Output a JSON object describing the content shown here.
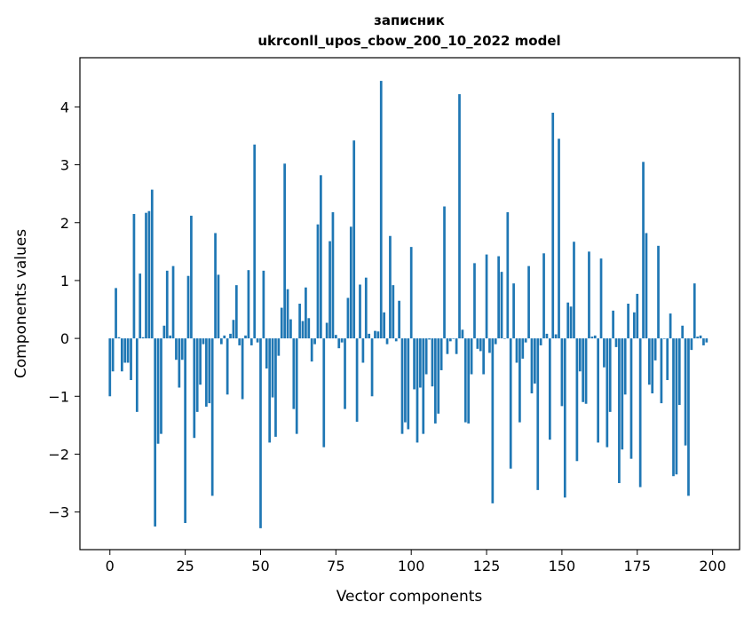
{
  "chart_data": {
    "type": "bar",
    "title": "записник",
    "subtitle": "ukrconll_upos_cbow_200_10_2022 model",
    "xlabel": "Vector components",
    "ylabel": "Components values",
    "xlim": [
      -9.95,
      208.95
    ],
    "ylim": [
      -3.65,
      4.85
    ],
    "xticks": [
      0,
      25,
      50,
      75,
      100,
      125,
      150,
      175,
      200
    ],
    "yticks": [
      -3,
      -2,
      -1,
      0,
      1,
      2,
      3,
      4
    ],
    "color": "#1f77b4",
    "grid": false,
    "values": [
      -1.0,
      -0.57,
      0.87,
      0.02,
      -0.57,
      -0.42,
      -0.42,
      -0.72,
      2.15,
      -1.27,
      1.12,
      0.02,
      2.17,
      2.2,
      2.57,
      -3.25,
      -1.82,
      -1.65,
      0.22,
      1.17,
      0.05,
      1.25,
      -0.37,
      -0.85,
      -0.37,
      -3.19,
      1.08,
      2.12,
      -1.72,
      -1.27,
      -0.8,
      -0.1,
      -1.18,
      -1.12,
      -2.72,
      1.82,
      1.1,
      -0.1,
      0.05,
      -0.97,
      0.08,
      0.32,
      0.92,
      -0.12,
      -1.05,
      0.05,
      1.18,
      -0.12,
      3.35,
      -0.07,
      -3.28,
      1.17,
      -0.52,
      -1.8,
      -1.02,
      -1.7,
      -0.3,
      0.53,
      3.02,
      0.85,
      0.33,
      -1.22,
      -1.65,
      0.6,
      0.3,
      0.88,
      0.35,
      -0.4,
      -0.1,
      1.97,
      2.82,
      -1.88,
      0.27,
      1.68,
      2.18,
      0.06,
      -0.17,
      -0.07,
      -1.22,
      0.7,
      1.93,
      3.42,
      -1.44,
      0.93,
      -0.42,
      1.05,
      0.08,
      -1.0,
      0.13,
      0.12,
      4.45,
      0.45,
      -0.1,
      1.77,
      0.92,
      -0.05,
      0.65,
      -1.65,
      -1.45,
      -1.57,
      1.58,
      -0.88,
      -1.8,
      -0.85,
      -1.65,
      -0.62,
      -0.02,
      -0.83,
      -1.47,
      -1.3,
      -0.55,
      2.28,
      -0.27,
      -0.05,
      0.0,
      -0.27,
      4.22,
      0.15,
      -1.45,
      -1.47,
      -0.62,
      1.3,
      -0.18,
      -0.22,
      -0.62,
      1.45,
      -0.25,
      -2.85,
      -0.1,
      1.42,
      1.15,
      0.0,
      2.18,
      -2.25,
      0.95,
      -0.42,
      -1.45,
      -0.35,
      -0.07,
      1.25,
      -0.95,
      -0.78,
      -2.62,
      -0.12,
      1.47,
      0.08,
      -1.75,
      3.9,
      0.07,
      3.45,
      -1.17,
      -2.75,
      0.62,
      0.55,
      1.67,
      -2.12,
      -0.57,
      -1.1,
      -1.13,
      1.5,
      0.03,
      0.05,
      -1.8,
      1.38,
      -0.5,
      -1.88,
      -1.27,
      0.48,
      -0.15,
      -2.5,
      -1.92,
      -0.97,
      0.6,
      -2.08,
      0.45,
      0.77,
      -2.57,
      3.05,
      1.82,
      -0.8,
      -0.95,
      -0.38,
      1.6,
      -1.12,
      0.0,
      -0.72,
      0.43,
      -2.38,
      -2.35,
      -1.15,
      0.22,
      -1.85,
      -2.72,
      -0.2,
      0.95,
      0.03,
      0.05,
      -0.12,
      -0.07
    ]
  }
}
